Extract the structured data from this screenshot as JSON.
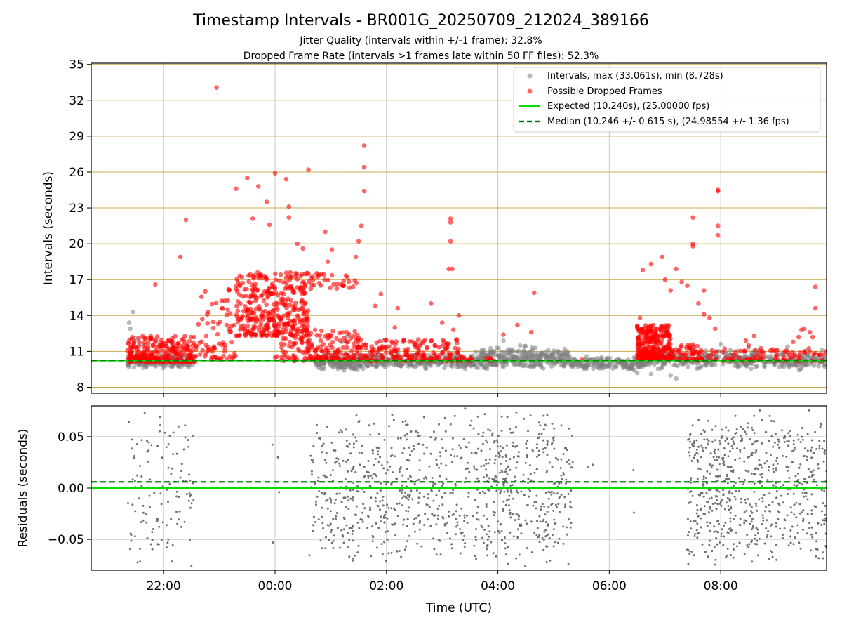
{
  "title": "Timestamp Intervals - BR001G_20250709_212024_389166",
  "subtitle1": "Jitter Quality (intervals within +/-1 frame): 32.8%",
  "subtitle2": "Dropped Frame Rate (intervals >1 frames late within 50 FF files): 52.3%",
  "colors": {
    "gray_points": "#808080",
    "red_points": "#ff0000",
    "expected_line": "#00e000",
    "median_line": "#007a00",
    "hgrid_top": "#c8a84b",
    "grid": "#c8c8c8",
    "residual_points": "#707070"
  },
  "chart_data": [
    {
      "type": "scatter",
      "ylabel": "Intervals (seconds)",
      "ylim": [
        7.5,
        35.1
      ],
      "yticks": [
        8,
        11,
        14,
        17,
        20,
        23,
        26,
        29,
        32,
        35
      ],
      "xlim_hours": [
        20.7,
        33.9
      ],
      "xticks": [
        {
          "h": 22,
          "label": "22:00"
        },
        {
          "h": 24,
          "label": "00:00"
        },
        {
          "h": 26,
          "label": "02:00"
        },
        {
          "h": 28,
          "label": "04:00"
        },
        {
          "h": 30,
          "label": "06:00"
        },
        {
          "h": 32,
          "label": "08:00"
        }
      ],
      "legend_position": "top-right",
      "legend": [
        {
          "key": "intervals",
          "label": "Intervals, max (33.061s), min (8.728s)"
        },
        {
          "key": "dropped",
          "label": "Possible Dropped Frames"
        },
        {
          "key": "expected",
          "label": "Expected (10.240s), (25.00000 fps)"
        },
        {
          "key": "median",
          "label": "Median (10.246 +/- 0.615 s), (24.98554 +/- 1.36 fps)"
        }
      ],
      "expected": 10.24,
      "median": 10.246,
      "series_intervals_clusters": [
        {
          "x0": 21.35,
          "x1": 22.55,
          "n": 260,
          "lo": 9.5,
          "hi": 10.9
        },
        {
          "x0": 24.7,
          "x1": 25.7,
          "n": 200,
          "lo": 9.3,
          "hi": 11.0
        },
        {
          "x0": 25.7,
          "x1": 27.6,
          "n": 260,
          "lo": 9.3,
          "hi": 11.0
        },
        {
          "x0": 27.6,
          "x1": 29.3,
          "n": 300,
          "lo": 9.2,
          "hi": 11.6
        },
        {
          "x0": 29.3,
          "x1": 30.6,
          "n": 160,
          "lo": 9.2,
          "hi": 10.8
        },
        {
          "x0": 30.6,
          "x1": 33.9,
          "n": 400,
          "lo": 9.3,
          "hi": 11.3
        }
      ],
      "series_intervals_outliers": [
        [
          21.4,
          12.9
        ],
        [
          21.38,
          13.4
        ],
        [
          21.45,
          14.3
        ],
        [
          21.5,
          12.1
        ],
        [
          21.6,
          11.6
        ],
        [
          25.2,
          11.8
        ],
        [
          25.3,
          12.3
        ],
        [
          25.95,
          11.9
        ],
        [
          26.6,
          11.6
        ],
        [
          27.1,
          11.6
        ],
        [
          28.1,
          11.9
        ],
        [
          28.4,
          11.5
        ],
        [
          30.5,
          9.2
        ],
        [
          30.75,
          9.1
        ],
        [
          31.1,
          9.0
        ],
        [
          31.2,
          8.73
        ],
        [
          31.5,
          11.2
        ],
        [
          32.0,
          11.6
        ],
        [
          32.5,
          11.3
        ],
        [
          33.2,
          11.4
        ]
      ],
      "series_dropped_clusters": [
        {
          "x0": 21.35,
          "x1": 22.6,
          "n": 260,
          "lo": 10.1,
          "hi": 12.3
        },
        {
          "x0": 22.6,
          "x1": 23.3,
          "n": 70,
          "lo": 10.3,
          "hi": 16.5
        },
        {
          "x0": 23.3,
          "x1": 24.6,
          "n": 330,
          "lo": 12.3,
          "hi": 17.6
        },
        {
          "x0": 24.0,
          "x1": 24.55,
          "n": 40,
          "lo": 10.2,
          "hi": 12.2
        },
        {
          "x0": 24.55,
          "x1": 25.5,
          "n": 120,
          "lo": 10.3,
          "hi": 12.8
        },
        {
          "x0": 25.5,
          "x1": 27.3,
          "n": 170,
          "lo": 10.2,
          "hi": 12.0
        },
        {
          "x0": 27.3,
          "x1": 28.0,
          "n": 15,
          "lo": 10.2,
          "hi": 10.6
        },
        {
          "x0": 30.5,
          "x1": 31.1,
          "n": 280,
          "lo": 10.4,
          "hi": 13.2
        },
        {
          "x0": 31.1,
          "x1": 31.6,
          "n": 50,
          "lo": 10.3,
          "hi": 11.6
        },
        {
          "x0": 31.6,
          "x1": 33.9,
          "n": 90,
          "lo": 10.2,
          "hi": 11.3
        }
      ],
      "series_dropped_outliers": [
        [
          22.95,
          33.06
        ],
        [
          21.85,
          16.6
        ],
        [
          23.3,
          24.6
        ],
        [
          23.5,
          25.5
        ],
        [
          23.7,
          24.8
        ],
        [
          23.85,
          23.5
        ],
        [
          24.0,
          25.9
        ],
        [
          24.2,
          25.4
        ],
        [
          24.25,
          23.1
        ],
        [
          24.25,
          22.2
        ],
        [
          23.9,
          21.6
        ],
        [
          23.6,
          22.1
        ],
        [
          22.4,
          22.0
        ],
        [
          22.3,
          18.9
        ],
        [
          24.4,
          20.0
        ],
        [
          24.5,
          19.6
        ],
        [
          24.6,
          26.2
        ],
        [
          24.9,
          21.0
        ],
        [
          24.95,
          18.5
        ],
        [
          25.02,
          19.5
        ],
        [
          25.6,
          28.2
        ],
        [
          25.6,
          26.4
        ],
        [
          25.6,
          24.4
        ],
        [
          25.55,
          21.5
        ],
        [
          25.5,
          20.2
        ],
        [
          25.45,
          18.9
        ],
        [
          25.3,
          17.2
        ],
        [
          25.4,
          16.4
        ],
        [
          25.05,
          16.6
        ],
        [
          25.8,
          14.8
        ],
        [
          25.9,
          15.8
        ],
        [
          26.2,
          14.6
        ],
        [
          26.15,
          13.0
        ],
        [
          27.15,
          22.1
        ],
        [
          27.15,
          21.8
        ],
        [
          27.15,
          20.2
        ],
        [
          27.12,
          17.9
        ],
        [
          27.18,
          17.9
        ],
        [
          26.8,
          15.0
        ],
        [
          27.3,
          14.0
        ],
        [
          27.0,
          13.4
        ],
        [
          27.2,
          12.8
        ],
        [
          28.65,
          15.9
        ],
        [
          28.35,
          13.2
        ],
        [
          28.1,
          12.4
        ],
        [
          28.6,
          12.6
        ],
        [
          29.5,
          10.3
        ],
        [
          30.5,
          13.0
        ],
        [
          30.55,
          13.8
        ],
        [
          30.6,
          17.8
        ],
        [
          30.75,
          18.3
        ],
        [
          30.95,
          18.9
        ],
        [
          31.0,
          17.0
        ],
        [
          31.2,
          17.9
        ],
        [
          31.3,
          16.8
        ],
        [
          31.1,
          16.1
        ],
        [
          31.5,
          22.2
        ],
        [
          31.5,
          19.8
        ],
        [
          31.5,
          20.0
        ],
        [
          31.4,
          16.5
        ],
        [
          31.7,
          16.1
        ],
        [
          31.6,
          15.0
        ],
        [
          31.7,
          14.1
        ],
        [
          31.8,
          13.8
        ],
        [
          31.95,
          24.4
        ],
        [
          31.95,
          24.5
        ],
        [
          31.95,
          21.5
        ],
        [
          31.95,
          20.7
        ],
        [
          31.9,
          12.9
        ],
        [
          32.5,
          11.5
        ],
        [
          32.6,
          12.3
        ],
        [
          32.45,
          11.9
        ],
        [
          33.3,
          11.8
        ],
        [
          33.4,
          12.2
        ],
        [
          33.45,
          12.8
        ],
        [
          33.5,
          12.9
        ],
        [
          33.6,
          12.6
        ],
        [
          33.65,
          12.2
        ],
        [
          33.7,
          14.6
        ],
        [
          33.7,
          16.4
        ]
      ],
      "series_dropped_ridge": {
        "x0": 23.6,
        "x1": 25.5,
        "hi": 17.6
      }
    },
    {
      "type": "scatter",
      "ylabel": "Residuals (seconds)",
      "xlabel": "Time (UTC)",
      "ylim": [
        -0.08,
        0.08
      ],
      "yticks": [
        {
          "v": 0.05,
          "label": "0.05"
        },
        {
          "v": 0.0,
          "label": "0.00"
        },
        {
          "v": -0.05,
          "label": "−0.05"
        }
      ],
      "expected_residual": 0.0,
      "median_residual": 0.006,
      "residual_clusters": [
        {
          "x0": 21.35,
          "x1": 22.55,
          "n": 120
        },
        {
          "x0": 23.9,
          "x1": 24.1,
          "n": 4
        },
        {
          "x0": 24.6,
          "x1": 25.0,
          "n": 60
        },
        {
          "x0": 25.0,
          "x1": 26.0,
          "n": 200
        },
        {
          "x0": 26.0,
          "x1": 27.7,
          "n": 290
        },
        {
          "x0": 27.7,
          "x1": 29.35,
          "n": 380
        },
        {
          "x0": 29.6,
          "x1": 29.7,
          "n": 2
        },
        {
          "x0": 30.4,
          "x1": 30.5,
          "n": 2
        },
        {
          "x0": 31.4,
          "x1": 32.3,
          "n": 270
        },
        {
          "x0": 32.3,
          "x1": 33.9,
          "n": 360
        }
      ]
    }
  ]
}
